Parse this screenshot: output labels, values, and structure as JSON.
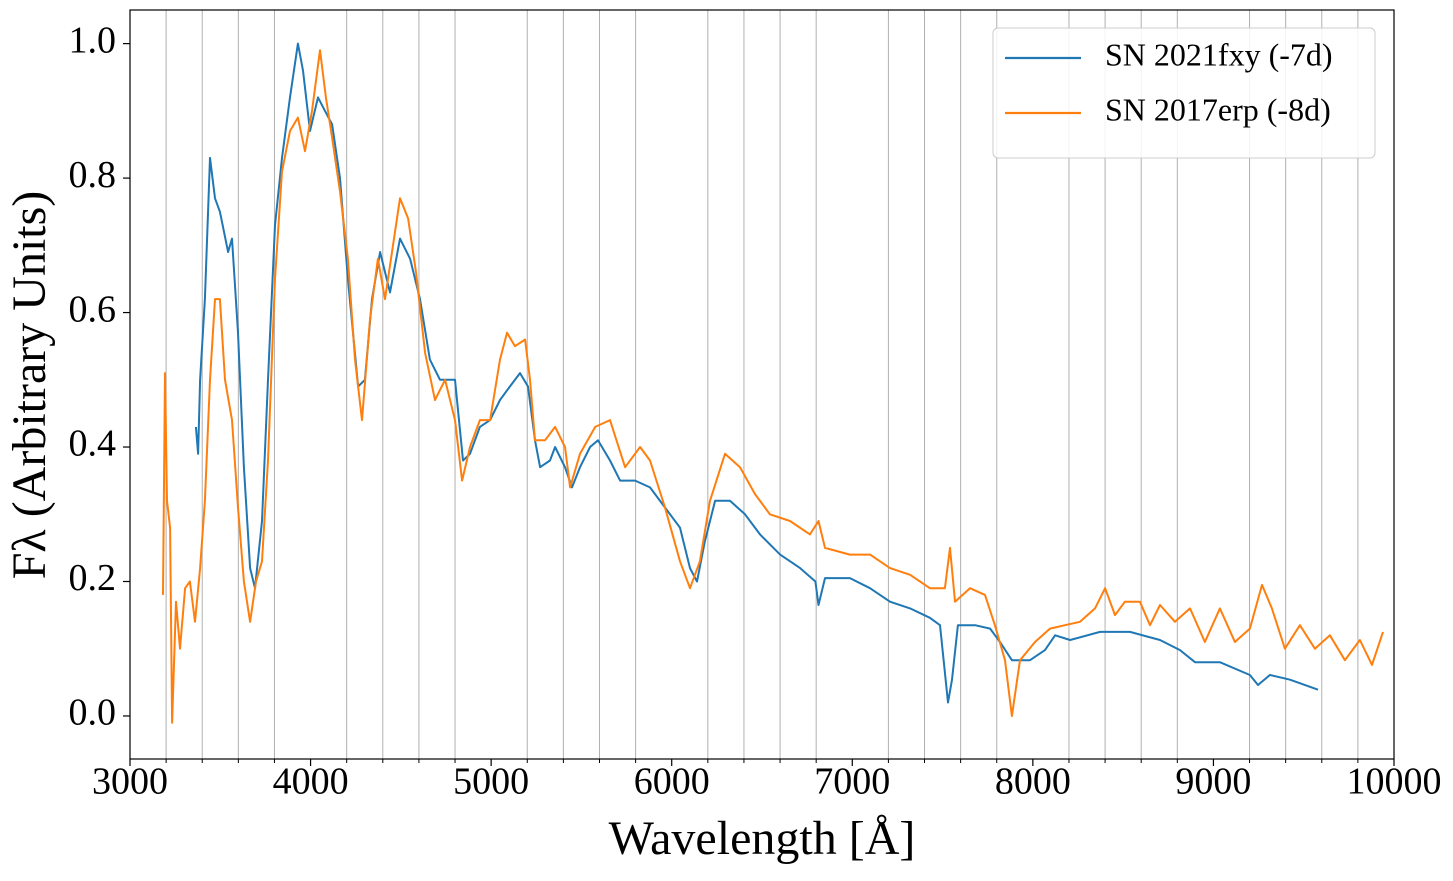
{
  "chart_data": {
    "type": "line",
    "xlabel": "Wavelength [Å]",
    "ylabel": "Fλ (Arbitrary Units)",
    "xlim": [
      3000,
      10000
    ],
    "ylim": [
      -0.064,
      1.05
    ],
    "xticks": [
      3000,
      4000,
      5000,
      6000,
      7000,
      8000,
      9000,
      10000
    ],
    "xminorticks": [
      3200,
      3400,
      3600,
      3800,
      4200,
      4400,
      4600,
      4800,
      5200,
      5400,
      5600,
      5800,
      6200,
      6400,
      6600,
      6800,
      7200,
      7400,
      7600,
      7800,
      8200,
      8400,
      8600,
      8800,
      9200,
      9400,
      9600,
      9800
    ],
    "yticks": [
      {
        "value": 0,
        "label": "0.0"
      },
      0.2,
      0.4,
      0.6,
      0.8,
      {
        "value": 1,
        "label": "1.0"
      }
    ],
    "grid": "x-minor",
    "legend": "upper right",
    "series": [
      {
        "name": "SN 2021fxy (-7d)",
        "color": "#1f77b4",
        "x": [
          3365,
          3377,
          3388,
          3415,
          3443,
          3471,
          3498,
          3543,
          3565,
          3598,
          3631,
          3665,
          3692,
          3731,
          3764,
          3803,
          3842,
          3886,
          3930,
          3958,
          3997,
          4041,
          4080,
          4119,
          4163,
          4207,
          4263,
          4301,
          4340,
          4385,
          4440,
          4495,
          4551,
          4606,
          4661,
          4717,
          4800,
          4844,
          4883,
          4938,
          4994,
          5049,
          5104,
          5160,
          5204,
          5243,
          5271,
          5326,
          5354,
          5409,
          5448,
          5492,
          5548,
          5592,
          5658,
          5714,
          5797,
          5880,
          5963,
          6046,
          6101,
          6140,
          6184,
          6240,
          6323,
          6406,
          6489,
          6600,
          6711,
          6796,
          6813,
          6849,
          6987,
          7098,
          7209,
          7320,
          7430,
          7486,
          7530,
          7552,
          7585,
          7680,
          7763,
          7818,
          7884,
          7984,
          8067,
          8123,
          8206,
          8372,
          8538,
          8704,
          8815,
          8898,
          9036,
          9202,
          9247,
          9313,
          9424,
          9579
        ],
        "values": [
          0.43,
          0.39,
          0.5,
          0.62,
          0.83,
          0.77,
          0.75,
          0.69,
          0.71,
          0.57,
          0.37,
          0.22,
          0.19,
          0.29,
          0.5,
          0.73,
          0.83,
          0.92,
          1.0,
          0.96,
          0.87,
          0.92,
          0.9,
          0.88,
          0.8,
          0.65,
          0.49,
          0.5,
          0.62,
          0.69,
          0.63,
          0.71,
          0.68,
          0.62,
          0.53,
          0.5,
          0.5,
          0.38,
          0.39,
          0.43,
          0.44,
          0.47,
          0.49,
          0.51,
          0.49,
          0.41,
          0.37,
          0.38,
          0.4,
          0.37,
          0.34,
          0.37,
          0.4,
          0.41,
          0.38,
          0.35,
          0.35,
          0.34,
          0.31,
          0.28,
          0.22,
          0.2,
          0.26,
          0.32,
          0.32,
          0.3,
          0.27,
          0.24,
          0.22,
          0.2,
          0.165,
          0.205,
          0.205,
          0.19,
          0.17,
          0.16,
          0.146,
          0.135,
          0.02,
          0.054,
          0.135,
          0.135,
          0.13,
          0.11,
          0.083,
          0.083,
          0.098,
          0.12,
          0.113,
          0.125,
          0.125,
          0.113,
          0.098,
          0.08,
          0.08,
          0.061,
          0.046,
          0.061,
          0.054,
          0.039
        ]
      },
      {
        "name": "SN 2017erp (-8d)",
        "color": "#ff7f0e",
        "x": [
          3183,
          3194,
          3205,
          3222,
          3233,
          3255,
          3277,
          3305,
          3332,
          3360,
          3388,
          3415,
          3443,
          3471,
          3498,
          3526,
          3565,
          3598,
          3631,
          3665,
          3698,
          3731,
          3764,
          3803,
          3842,
          3886,
          3930,
          3969,
          4008,
          4052,
          4085,
          4119,
          4163,
          4207,
          4246,
          4285,
          4329,
          4373,
          4412,
          4451,
          4495,
          4540,
          4584,
          4634,
          4689,
          4745,
          4800,
          4839,
          4883,
          4938,
          4994,
          5049,
          5088,
          5132,
          5188,
          5215,
          5243,
          5298,
          5354,
          5409,
          5437,
          5492,
          5576,
          5658,
          5742,
          5825,
          5880,
          5963,
          6046,
          6101,
          6156,
          6212,
          6295,
          6378,
          6461,
          6544,
          6655,
          6766,
          6813,
          6849,
          6987,
          7098,
          7209,
          7320,
          7430,
          7513,
          7541,
          7569,
          7652,
          7735,
          7790,
          7846,
          7884,
          7929,
          8012,
          8095,
          8178,
          8261,
          8344,
          8400,
          8455,
          8510,
          8593,
          8649,
          8704,
          8787,
          8870,
          8953,
          9036,
          9119,
          9202,
          9269,
          9324,
          9396,
          9479,
          9562,
          9645,
          9728,
          9811,
          9878,
          9939
        ],
        "values": [
          0.18,
          0.51,
          0.32,
          0.28,
          -0.01,
          0.17,
          0.1,
          0.19,
          0.2,
          0.14,
          0.22,
          0.32,
          0.5,
          0.62,
          0.62,
          0.5,
          0.44,
          0.31,
          0.2,
          0.14,
          0.2,
          0.23,
          0.38,
          0.65,
          0.81,
          0.87,
          0.89,
          0.84,
          0.9,
          0.99,
          0.92,
          0.86,
          0.78,
          0.68,
          0.53,
          0.44,
          0.59,
          0.68,
          0.62,
          0.69,
          0.77,
          0.74,
          0.66,
          0.54,
          0.47,
          0.5,
          0.44,
          0.35,
          0.4,
          0.44,
          0.44,
          0.53,
          0.57,
          0.55,
          0.56,
          0.5,
          0.41,
          0.41,
          0.43,
          0.4,
          0.34,
          0.39,
          0.43,
          0.44,
          0.37,
          0.4,
          0.38,
          0.31,
          0.23,
          0.19,
          0.23,
          0.32,
          0.39,
          0.37,
          0.33,
          0.3,
          0.29,
          0.27,
          0.29,
          0.25,
          0.24,
          0.24,
          0.22,
          0.21,
          0.19,
          0.19,
          0.25,
          0.17,
          0.19,
          0.18,
          0.135,
          0.083,
          0.0,
          0.083,
          0.11,
          0.13,
          0.135,
          0.14,
          0.16,
          0.19,
          0.15,
          0.17,
          0.17,
          0.135,
          0.165,
          0.14,
          0.16,
          0.11,
          0.16,
          0.11,
          0.13,
          0.195,
          0.16,
          0.1,
          0.135,
          0.1,
          0.12,
          0.083,
          0.113,
          0.076,
          0.125
        ]
      }
    ]
  }
}
